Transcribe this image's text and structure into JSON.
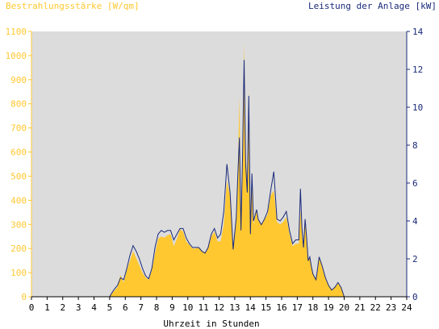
{
  "chart_data": {
    "type": "area",
    "title_left": "Bestrahlungsstärke [W/qm]",
    "title_right": "Leistung der Anlage [kW]",
    "xlabel": "Uhrzeit in Stunden",
    "xlim": [
      0,
      24
    ],
    "x_ticks": [
      0,
      1,
      2,
      3,
      4,
      5,
      6,
      7,
      8,
      9,
      10,
      11,
      12,
      13,
      14,
      15,
      16,
      17,
      18,
      19,
      20,
      21,
      22,
      23,
      24
    ],
    "y_left": {
      "lim": [
        0,
        1100
      ],
      "ticks": [
        0,
        100,
        200,
        300,
        400,
        500,
        600,
        700,
        800,
        900,
        1000,
        1100
      ]
    },
    "y_right": {
      "lim": [
        0,
        14
      ],
      "ticks": [
        0,
        2,
        4,
        6,
        8,
        10,
        12,
        14
      ]
    },
    "grid": false,
    "colors": {
      "plot_bg": "#dcdcdc",
      "irradiance_fill": "#ffc830",
      "power_line": "#1a2a7a",
      "left_axis_text": "#ffc830",
      "right_axis_text": "#1a2a7a",
      "axis_text": "#000000"
    },
    "series": [
      {
        "name": "Bestrahlungsstärke",
        "axis": "left",
        "style": "area",
        "x": [
          0,
          5,
          5.1,
          5.3,
          5.5,
          5.6,
          5.7,
          5.9,
          6.1,
          6.3,
          6.5,
          6.7,
          6.9,
          7.1,
          7.3,
          7.5,
          7.7,
          7.9,
          8.1,
          8.3,
          8.5,
          8.7,
          8.9,
          9.1,
          9.3,
          9.5,
          9.7,
          9.9,
          10.1,
          10.3,
          10.5,
          10.7,
          10.9,
          11.1,
          11.3,
          11.5,
          11.7,
          11.9,
          12.1,
          12.3,
          12.5,
          12.7,
          12.9,
          13.1,
          13.2,
          13.3,
          13.4,
          13.5,
          13.6,
          13.7,
          13.8,
          13.9,
          14,
          14.1,
          14.2,
          14.3,
          14.4,
          14.5,
          14.7,
          14.9,
          15.1,
          15.3,
          15.5,
          15.7,
          15.9,
          16.1,
          16.3,
          16.5,
          16.7,
          16.9,
          17.1,
          17.2,
          17.3,
          17.4,
          17.5,
          17.6,
          17.7,
          17.8,
          17.9,
          18,
          18.2,
          18.4,
          18.6,
          18.8,
          19,
          19.2,
          19.4,
          19.6,
          19.8,
          20,
          24
        ],
        "values": [
          0,
          0,
          10,
          25,
          40,
          70,
          90,
          60,
          110,
          150,
          190,
          160,
          130,
          100,
          80,
          70,
          110,
          180,
          240,
          250,
          245,
          255,
          260,
          210,
          240,
          280,
          270,
          230,
          215,
          200,
          200,
          205,
          190,
          185,
          200,
          250,
          270,
          230,
          230,
          300,
          480,
          420,
          200,
          320,
          520,
          830,
          300,
          620,
          1050,
          600,
          480,
          860,
          290,
          500,
          300,
          330,
          360,
          320,
          300,
          320,
          340,
          420,
          440,
          310,
          300,
          310,
          330,
          260,
          210,
          220,
          220,
          360,
          260,
          200,
          310,
          240,
          150,
          160,
          120,
          100,
          70,
          160,
          120,
          80,
          50,
          30,
          40,
          55,
          40,
          0,
          0
        ]
      },
      {
        "name": "Leistung der Anlage",
        "axis": "right",
        "style": "line",
        "x": [
          0,
          5,
          5.1,
          5.3,
          5.5,
          5.6,
          5.7,
          5.9,
          6.1,
          6.3,
          6.5,
          6.7,
          6.9,
          7.1,
          7.3,
          7.5,
          7.7,
          7.9,
          8.1,
          8.3,
          8.5,
          8.7,
          8.9,
          9.1,
          9.3,
          9.5,
          9.7,
          9.9,
          10.1,
          10.3,
          10.5,
          10.7,
          10.9,
          11.1,
          11.3,
          11.5,
          11.7,
          11.9,
          12.1,
          12.3,
          12.5,
          12.7,
          12.9,
          13.1,
          13.2,
          13.3,
          13.4,
          13.5,
          13.6,
          13.7,
          13.8,
          13.9,
          14,
          14.1,
          14.2,
          14.3,
          14.4,
          14.5,
          14.7,
          14.9,
          15.1,
          15.3,
          15.5,
          15.7,
          15.9,
          16.1,
          16.3,
          16.5,
          16.7,
          16.9,
          17.1,
          17.2,
          17.3,
          17.4,
          17.5,
          17.6,
          17.7,
          17.8,
          17.9,
          18,
          18.2,
          18.4,
          18.6,
          18.8,
          19,
          19.2,
          19.4,
          19.6,
          19.8,
          20,
          24
        ],
        "values": [
          0,
          0,
          0.15,
          0.4,
          0.6,
          0.8,
          1.0,
          0.9,
          1.5,
          2.2,
          2.7,
          2.4,
          2.0,
          1.5,
          1.1,
          0.95,
          1.5,
          2.6,
          3.3,
          3.5,
          3.4,
          3.5,
          3.5,
          3.0,
          3.3,
          3.6,
          3.6,
          3.1,
          2.8,
          2.6,
          2.6,
          2.6,
          2.4,
          2.3,
          2.6,
          3.3,
          3.6,
          3.1,
          3.3,
          4.5,
          7.0,
          5.5,
          2.5,
          4.2,
          6.5,
          8.4,
          3.5,
          7.5,
          12.5,
          7.0,
          5.5,
          10.6,
          3.3,
          6.5,
          4.0,
          4.3,
          4.6,
          4.1,
          3.8,
          4.1,
          4.5,
          5.6,
          6.6,
          4.1,
          4.0,
          4.2,
          4.5,
          3.5,
          2.8,
          3.0,
          3.0,
          5.7,
          3.6,
          2.6,
          4.1,
          3.1,
          1.9,
          2.1,
          1.6,
          1.2,
          0.9,
          2.1,
          1.6,
          1.0,
          0.6,
          0.35,
          0.5,
          0.75,
          0.5,
          0,
          0
        ]
      }
    ]
  }
}
